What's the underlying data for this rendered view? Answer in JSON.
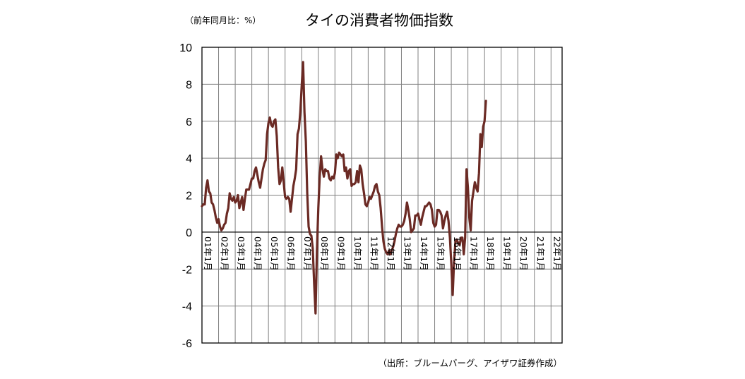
{
  "chart_data": {
    "type": "line",
    "title": "タイの消費者物価指数",
    "unit_label": "（前年同月比：%）",
    "source": "（出所：ブルームバーグ、アイザワ証券作成）",
    "ylim": [
      -6,
      10
    ],
    "yticks": [
      "10",
      "8",
      "6",
      "4",
      "2",
      "0",
      "-2",
      "-4",
      "-6"
    ],
    "xlim": [
      "2001-01",
      "2022-09"
    ],
    "xticks": [
      "01年1月",
      "02年1月",
      "03年1月",
      "04年1月",
      "05年1月",
      "06年1月",
      "07年1月",
      "08年1月",
      "09年1月",
      "10年1月",
      "11年1月",
      "12年1月",
      "13年1月",
      "14年1月",
      "15年1月",
      "16年1月",
      "17年1月",
      "18年1月",
      "19年1月",
      "20年1月",
      "21年1月",
      "22年1月"
    ],
    "grid": true,
    "line_color": "#6b2a24",
    "series": [
      {
        "start": "2001-01",
        "frequency": "monthly",
        "values": [
          1.4,
          1.5,
          1.5,
          2.4,
          2.8,
          2.2,
          2.1,
          1.6,
          1.5,
          1.2,
          0.8,
          0.5,
          0.7,
          0.3,
          0.1,
          0.2,
          0.4,
          0.5,
          1.0,
          1.3,
          2.1,
          1.8,
          1.7,
          1.9,
          1.6,
          1.7,
          2.0,
          1.3,
          1.6,
          1.9,
          1.2,
          1.8,
          2.3,
          2.3,
          2.3,
          2.6,
          2.9,
          2.9,
          3.3,
          3.5,
          3.1,
          2.7,
          2.4,
          2.9,
          3.4,
          3.7,
          3.9,
          5.3,
          5.9,
          6.2,
          5.8,
          5.7,
          6.0,
          6.1,
          5.2,
          3.5,
          2.6,
          2.8,
          3.5,
          2.7,
          1.9,
          1.8,
          1.9,
          1.8,
          1.1,
          1.8,
          2.5,
          2.9,
          3.4,
          5.3,
          5.6,
          6.5,
          7.9,
          9.2,
          6.5,
          4.9,
          2.1,
          0.3,
          -0.1,
          -0.2,
          -0.9,
          -2.8,
          -4.4,
          -1.0,
          1.3,
          3.0,
          4.1,
          3.4,
          3.0,
          3.4,
          3.3,
          3.3,
          2.9,
          2.8,
          3.0,
          2.9,
          3.2,
          4.2,
          4.0,
          4.3,
          4.2,
          4.1,
          4.2,
          3.3,
          3.5,
          2.9,
          3.3,
          3.4,
          2.5,
          2.6,
          2.6,
          2.7,
          3.3,
          2.7,
          3.6,
          3.4,
          2.6,
          2.1,
          1.5,
          1.4,
          1.6,
          1.9,
          1.8,
          2.0,
          2.2,
          2.5,
          2.6,
          2.2,
          2.0,
          1.3,
          0.3,
          -0.5,
          -0.9,
          -1.1,
          -1.2,
          -1.0,
          -1.2,
          -1.0,
          -0.8,
          -0.5,
          -0.1,
          0.2,
          0.4,
          0.3,
          0.3,
          0.4,
          0.6,
          1.0,
          1.6,
          1.2,
          0.7,
          0.0,
          0.1,
          0.2,
          0.9,
          0.9,
          1.0,
          0.7,
          0.4,
          0.8,
          1.1,
          1.4,
          1.4,
          1.5,
          1.6,
          1.5,
          1.2,
          0.5,
          0.3,
          0.4,
          1.2,
          1.2,
          1.1,
          0.9,
          0.2,
          0.6,
          0.9,
          1.1,
          0.6,
          -0.3,
          -1.7,
          -3.4,
          -1.6,
          -0.5,
          -0.4,
          -0.6,
          -0.7,
          -0.3,
          -0.3,
          -1.2,
          -0.3,
          3.4,
          2.4,
          0.8,
          0.1,
          1.7,
          2.2,
          2.7,
          2.4,
          2.2,
          3.2,
          5.3,
          4.6,
          5.7,
          6.0,
          7.1
        ]
      }
    ]
  }
}
